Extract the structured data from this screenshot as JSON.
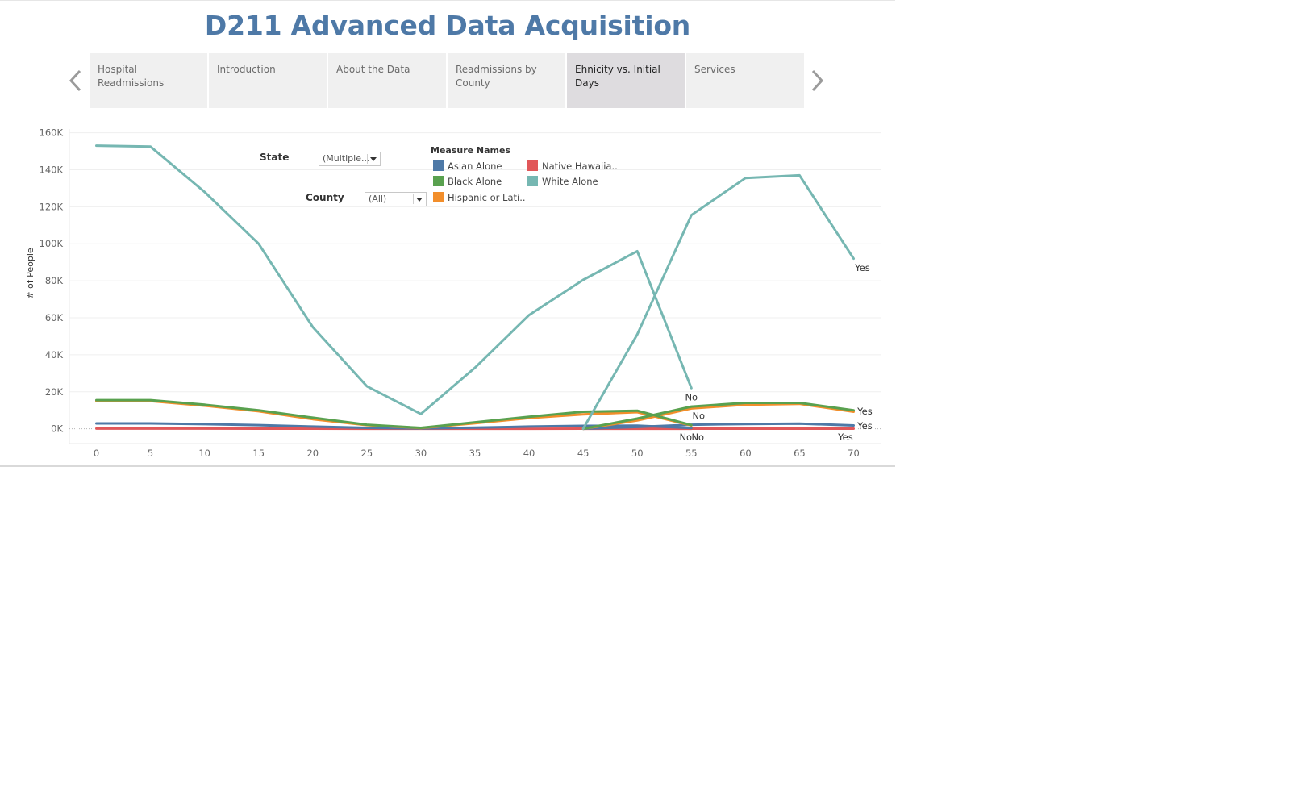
{
  "page": {
    "title": "D211 Advanced Data Acquisition"
  },
  "nav": {
    "prev_icon": "chevron-left-icon",
    "next_icon": "chevron-right-icon",
    "tabs": [
      {
        "label": "Hospital Readmissions",
        "active": false
      },
      {
        "label": "Introduction",
        "active": false
      },
      {
        "label": "About the Data",
        "active": false
      },
      {
        "label": "Readmissions by County",
        "active": false
      },
      {
        "label": "Ehnicity vs. Initial Days",
        "active": true
      },
      {
        "label": "Services",
        "active": false
      }
    ]
  },
  "filters": {
    "state": {
      "label": "State",
      "value": "(Multiple..."
    },
    "county": {
      "label": "County",
      "value": "(All)"
    }
  },
  "legend": {
    "title": "Measure Names",
    "items": [
      {
        "label": "Asian Alone",
        "color": "#4e79a7"
      },
      {
        "label": "Native Hawaiia..",
        "color": "#e15759"
      },
      {
        "label": "Black Alone",
        "color": "#59a14f"
      },
      {
        "label": "White Alone",
        "color": "#76b7b2"
      },
      {
        "label": "Hispanic or Lati..",
        "color": "#f28e2b"
      }
    ]
  },
  "chart_data": {
    "type": "line",
    "ylabel": "# of People",
    "xlabel": "",
    "x_ticks": [
      0,
      5,
      10,
      15,
      20,
      25,
      30,
      35,
      40,
      45,
      50,
      55,
      60,
      65,
      70
    ],
    "y_ticks": [
      0,
      20000,
      40000,
      60000,
      80000,
      100000,
      120000,
      140000,
      160000
    ],
    "y_tick_labels": [
      "0K",
      "20K",
      "40K",
      "60K",
      "80K",
      "100K",
      "120K",
      "140K",
      "160K"
    ],
    "xlim": [
      -2.5,
      72.5
    ],
    "ylim": [
      -8000,
      162000
    ],
    "grid": true,
    "series": [
      {
        "group": "No",
        "measure": "White Alone",
        "color": "#76b7b2",
        "x": [
          0,
          5,
          10,
          15,
          20,
          25,
          30,
          35,
          40,
          45,
          50,
          55
        ],
        "y": [
          153000,
          152500,
          128000,
          100000,
          55000,
          23000,
          8000,
          33000,
          61500,
          80500,
          96000,
          22000
        ]
      },
      {
        "group": "No",
        "measure": "Black Alone",
        "color": "#59a14f",
        "x": [
          0,
          5,
          10,
          15,
          20,
          25,
          30,
          35,
          40,
          45,
          50,
          55
        ],
        "y": [
          15500,
          15500,
          13000,
          10000,
          6000,
          2200,
          500,
          3500,
          6500,
          9200,
          9800,
          2000
        ]
      },
      {
        "group": "No",
        "measure": "Hispanic or Latino",
        "color": "#f28e2b",
        "x": [
          0,
          5,
          10,
          15,
          20,
          25,
          30,
          35,
          40,
          45,
          50,
          55
        ],
        "y": [
          15000,
          15000,
          12500,
          9500,
          5200,
          2000,
          400,
          3000,
          5800,
          7800,
          9000,
          1800
        ]
      },
      {
        "group": "No",
        "measure": "Asian Alone",
        "color": "#4e79a7",
        "x": [
          0,
          5,
          10,
          15,
          20,
          25,
          30,
          35,
          40,
          45,
          50,
          55
        ],
        "y": [
          2900,
          2900,
          2500,
          2000,
          1200,
          500,
          200,
          600,
          1200,
          1600,
          1700,
          400
        ]
      },
      {
        "group": "No",
        "measure": "Native Hawaiian",
        "color": "#e15759",
        "x": [
          0,
          5,
          10,
          15,
          20,
          25,
          30,
          35,
          40,
          45,
          50,
          55
        ],
        "y": [
          100,
          100,
          100,
          80,
          50,
          20,
          10,
          20,
          40,
          60,
          60,
          20
        ]
      },
      {
        "group": "Yes",
        "measure": "White Alone",
        "color": "#76b7b2",
        "x": [
          45,
          50,
          55,
          60,
          65,
          70
        ],
        "y": [
          0,
          51000,
          115500,
          135500,
          137000,
          92000
        ]
      },
      {
        "group": "Yes",
        "measure": "Black Alone",
        "color": "#59a14f",
        "x": [
          45,
          50,
          55,
          60,
          65,
          70
        ],
        "y": [
          0,
          5500,
          12000,
          14000,
          14000,
          10000
        ]
      },
      {
        "group": "Yes",
        "measure": "Hispanic or Latino",
        "color": "#f28e2b",
        "x": [
          45,
          50,
          55,
          60,
          65,
          70
        ],
        "y": [
          0,
          4500,
          11000,
          13000,
          13500,
          9200
        ]
      },
      {
        "group": "Yes",
        "measure": "Asian Alone",
        "color": "#4e79a7",
        "x": [
          45,
          50,
          55,
          60,
          65,
          70
        ],
        "y": [
          0,
          1000,
          2200,
          2600,
          2800,
          1800
        ]
      },
      {
        "group": "Yes",
        "measure": "Native Hawaiian",
        "color": "#e15759",
        "x": [
          45,
          50,
          55,
          60,
          65,
          70
        ],
        "y": [
          0,
          30,
          60,
          70,
          70,
          50
        ]
      }
    ],
    "annotations": [
      {
        "text": "No",
        "x": 55,
        "y": 17000,
        "dx": 0,
        "dy": 0
      },
      {
        "text": "No",
        "x": 55,
        "y": 7000,
        "dx": 9,
        "dy": 0
      },
      {
        "text": "No",
        "x": 55,
        "y": -4500,
        "dx": -7,
        "dy": 0
      },
      {
        "text": "No",
        "x": 55,
        "y": -4500,
        "dx": 8,
        "dy": 0
      },
      {
        "text": "Yes",
        "x": 70,
        "y": 87000,
        "dx": 11,
        "dy": 0
      },
      {
        "text": "Yes",
        "x": 70,
        "y": 9500,
        "dx": 14,
        "dy": 0
      },
      {
        "text": "Yes",
        "x": 70,
        "y": 1500,
        "dx": 14,
        "dy": 0
      },
      {
        "text": "Yes",
        "x": 70,
        "y": -4500,
        "dx": -10,
        "dy": 0
      }
    ]
  }
}
